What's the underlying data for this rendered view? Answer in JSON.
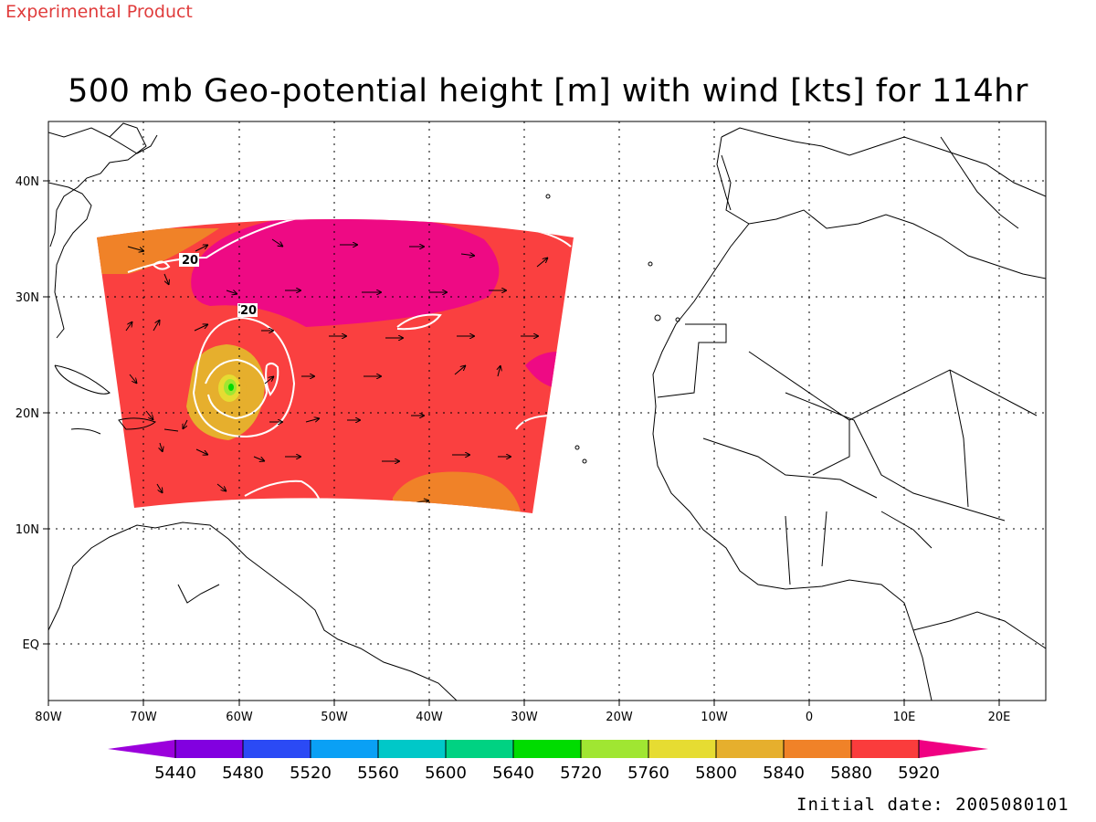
{
  "header": {
    "product_label": "Experimental Product",
    "title": "500 mb Geo-potential height [m] with wind [kts] for 114hr",
    "initial_date_label": "Initial date: 2005080101"
  },
  "map": {
    "lon_labels": [
      "80W",
      "70W",
      "60W",
      "50W",
      "40W",
      "30W",
      "20W",
      "10W",
      "0",
      "10E",
      "20E"
    ],
    "lat_labels": [
      "40N",
      "30N",
      "20N",
      "10N",
      "EQ"
    ],
    "contour_labels": [
      "20",
      "20"
    ]
  },
  "colorbar": {
    "tick_labels": [
      "5440",
      "5480",
      "5520",
      "5560",
      "5600",
      "5640",
      "5720",
      "5760",
      "5800",
      "5840",
      "5880",
      "5920"
    ],
    "colors": [
      "#9b00dc",
      "#8200e0",
      "#2b4af5",
      "#0aa0f5",
      "#00c8c8",
      "#00d282",
      "#00dc00",
      "#a0e632",
      "#e6dc32",
      "#e6af2d",
      "#f08228",
      "#fa3c3c",
      "#f00082"
    ]
  },
  "field_colors": {
    "background_field": "#fa4040",
    "high": "#ee0a84",
    "orange": "#f08228",
    "gold": "#e6af2d",
    "yellow": "#e6dc32",
    "lightgreen": "#a0e632",
    "green": "#00dc00"
  }
}
